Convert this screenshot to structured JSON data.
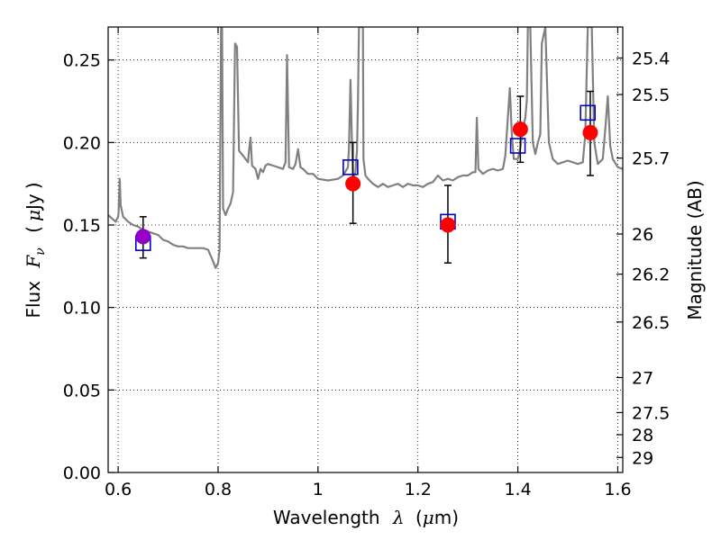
{
  "chart_data": {
    "type": "scatter",
    "title": "",
    "xlabel": {
      "prefix": "Wavelength",
      "symbol": "λ",
      "unit_open": "(",
      "unit_mu": "μ",
      "unit_rest": "m)"
    },
    "ylabel": {
      "prefix": "Flux",
      "symbol": "F",
      "sub": "ν",
      "unit_open": "(",
      "unit_mu": "μ",
      "unit_rest": "Jy",
      "unit_close": ")"
    },
    "ylabel_right": "Magnitude (AB)",
    "xlim": [
      0.58,
      1.61
    ],
    "ylim": [
      0.0,
      0.27
    ],
    "grid": true,
    "legend": "none",
    "x_ticks": [
      {
        "value": 0.6,
        "label": "0.6"
      },
      {
        "value": 0.8,
        "label": "0.8"
      },
      {
        "value": 1.0,
        "label": "1"
      },
      {
        "value": 1.2,
        "label": "1.2"
      },
      {
        "value": 1.4,
        "label": "1.4"
      },
      {
        "value": 1.6,
        "label": "1.6"
      }
    ],
    "y_ticks": [
      {
        "value": 0.0,
        "label": "0.00"
      },
      {
        "value": 0.05,
        "label": "0.05"
      },
      {
        "value": 0.1,
        "label": "0.10"
      },
      {
        "value": 0.15,
        "label": "0.15"
      },
      {
        "value": 0.2,
        "label": "0.20"
      },
      {
        "value": 0.25,
        "label": "0.25"
      }
    ],
    "mag_ticks": [
      {
        "mag": 25.4,
        "label": "25.4"
      },
      {
        "mag": 25.5,
        "label": "25.5"
      },
      {
        "mag": 25.7,
        "label": "25.7"
      },
      {
        "mag": 26.0,
        "label": "26"
      },
      {
        "mag": 26.2,
        "label": "26.2"
      },
      {
        "mag": 26.5,
        "label": "26.5"
      },
      {
        "mag": 27.0,
        "label": "27"
      },
      {
        "mag": 27.5,
        "label": "27.5"
      },
      {
        "mag": 28.0,
        "label": "28"
      },
      {
        "mag": 29.0,
        "label": "29"
      }
    ],
    "series": [
      {
        "kind": "line",
        "color": "#808080",
        "points": [
          [
            0.58,
            0.156
          ],
          [
            0.595,
            0.152
          ],
          [
            0.6,
            0.155
          ],
          [
            0.601,
            0.158
          ],
          [
            0.603,
            0.178
          ],
          [
            0.605,
            0.162
          ],
          [
            0.61,
            0.155
          ],
          [
            0.62,
            0.152
          ],
          [
            0.63,
            0.15
          ],
          [
            0.64,
            0.149
          ],
          [
            0.65,
            0.147
          ],
          [
            0.66,
            0.146
          ],
          [
            0.67,
            0.145
          ],
          [
            0.68,
            0.144
          ],
          [
            0.69,
            0.141
          ],
          [
            0.7,
            0.14
          ],
          [
            0.71,
            0.138
          ],
          [
            0.72,
            0.137
          ],
          [
            0.73,
            0.137
          ],
          [
            0.74,
            0.136
          ],
          [
            0.75,
            0.136
          ],
          [
            0.76,
            0.136
          ],
          [
            0.77,
            0.136
          ],
          [
            0.78,
            0.135
          ],
          [
            0.79,
            0.128
          ],
          [
            0.795,
            0.124
          ],
          [
            0.8,
            0.127
          ],
          [
            0.803,
            0.135
          ],
          [
            0.806,
            0.27
          ],
          [
            0.808,
            0.27
          ],
          [
            0.81,
            0.16
          ],
          [
            0.815,
            0.156
          ],
          [
            0.82,
            0.16
          ],
          [
            0.825,
            0.163
          ],
          [
            0.83,
            0.17
          ],
          [
            0.834,
            0.26
          ],
          [
            0.838,
            0.258
          ],
          [
            0.842,
            0.195
          ],
          [
            0.85,
            0.192
          ],
          [
            0.855,
            0.19
          ],
          [
            0.86,
            0.188
          ],
          [
            0.862,
            0.195
          ],
          [
            0.865,
            0.203
          ],
          [
            0.868,
            0.186
          ],
          [
            0.875,
            0.184
          ],
          [
            0.88,
            0.178
          ],
          [
            0.885,
            0.184
          ],
          [
            0.89,
            0.182
          ],
          [
            0.895,
            0.186
          ],
          [
            0.9,
            0.187
          ],
          [
            0.91,
            0.186
          ],
          [
            0.92,
            0.185
          ],
          [
            0.93,
            0.184
          ],
          [
            0.935,
            0.188
          ],
          [
            0.938,
            0.253
          ],
          [
            0.942,
            0.185
          ],
          [
            0.95,
            0.184
          ],
          [
            0.955,
            0.187
          ],
          [
            0.96,
            0.196
          ],
          [
            0.965,
            0.185
          ],
          [
            0.97,
            0.184
          ],
          [
            0.98,
            0.181
          ],
          [
            0.99,
            0.181
          ],
          [
            1.0,
            0.178
          ],
          [
            1.02,
            0.177
          ],
          [
            1.04,
            0.178
          ],
          [
            1.05,
            0.18
          ],
          [
            1.06,
            0.185
          ],
          [
            1.062,
            0.197
          ],
          [
            1.065,
            0.238
          ],
          [
            1.068,
            0.2
          ],
          [
            1.07,
            0.178
          ],
          [
            1.075,
            0.182
          ],
          [
            1.078,
            0.195
          ],
          [
            1.08,
            0.225
          ],
          [
            1.082,
            0.27
          ],
          [
            1.09,
            0.27
          ],
          [
            1.091,
            0.19
          ],
          [
            1.095,
            0.18
          ],
          [
            1.1,
            0.178
          ],
          [
            1.11,
            0.175
          ],
          [
            1.12,
            0.173
          ],
          [
            1.13,
            0.175
          ],
          [
            1.14,
            0.173
          ],
          [
            1.15,
            0.174
          ],
          [
            1.16,
            0.175
          ],
          [
            1.17,
            0.173
          ],
          [
            1.18,
            0.175
          ],
          [
            1.19,
            0.174
          ],
          [
            1.2,
            0.174
          ],
          [
            1.21,
            0.173
          ],
          [
            1.22,
            0.175
          ],
          [
            1.23,
            0.176
          ],
          [
            1.24,
            0.18
          ],
          [
            1.25,
            0.177
          ],
          [
            1.26,
            0.178
          ],
          [
            1.27,
            0.177
          ],
          [
            1.28,
            0.179
          ],
          [
            1.29,
            0.18
          ],
          [
            1.3,
            0.18
          ],
          [
            1.31,
            0.182
          ],
          [
            1.315,
            0.182
          ],
          [
            1.318,
            0.215
          ],
          [
            1.321,
            0.184
          ],
          [
            1.33,
            0.181
          ],
          [
            1.34,
            0.183
          ],
          [
            1.35,
            0.184
          ],
          [
            1.36,
            0.183
          ],
          [
            1.37,
            0.184
          ],
          [
            1.375,
            0.192
          ],
          [
            1.38,
            0.215
          ],
          [
            1.384,
            0.233
          ],
          [
            1.388,
            0.205
          ],
          [
            1.392,
            0.19
          ],
          [
            1.4,
            0.19
          ],
          [
            1.405,
            0.197
          ],
          [
            1.41,
            0.208
          ],
          [
            1.415,
            0.215
          ],
          [
            1.418,
            0.226
          ],
          [
            1.42,
            0.27
          ],
          [
            1.425,
            0.27
          ],
          [
            1.43,
            0.2
          ],
          [
            1.435,
            0.193
          ],
          [
            1.44,
            0.2
          ],
          [
            1.445,
            0.205
          ],
          [
            1.448,
            0.26
          ],
          [
            1.455,
            0.27
          ],
          [
            1.462,
            0.2
          ],
          [
            1.47,
            0.19
          ],
          [
            1.48,
            0.187
          ],
          [
            1.49,
            0.188
          ],
          [
            1.5,
            0.189
          ],
          [
            1.51,
            0.188
          ],
          [
            1.52,
            0.187
          ],
          [
            1.53,
            0.188
          ],
          [
            1.535,
            0.205
          ],
          [
            1.54,
            0.27
          ],
          [
            1.548,
            0.27
          ],
          [
            1.553,
            0.2
          ],
          [
            1.56,
            0.187
          ],
          [
            1.57,
            0.19
          ],
          [
            1.575,
            0.208
          ],
          [
            1.58,
            0.228
          ],
          [
            1.585,
            0.198
          ],
          [
            1.59,
            0.19
          ],
          [
            1.6,
            0.185
          ],
          [
            1.61,
            0.184
          ]
        ]
      },
      {
        "kind": "open-square",
        "color": "#0000cc",
        "points": [
          [
            0.65,
            0.139
          ],
          [
            1.065,
            0.185
          ],
          [
            1.26,
            0.152
          ],
          [
            1.4,
            0.198
          ],
          [
            1.54,
            0.218
          ]
        ]
      },
      {
        "kind": "filled-circle",
        "color": "#ff0000",
        "errors": true,
        "points": [
          {
            "x": 0.65,
            "y": 0.143,
            "lo": 0.13,
            "hi": 0.155,
            "color": "#9400c8"
          },
          {
            "x": 1.07,
            "y": 0.175,
            "lo": 0.151,
            "hi": 0.2
          },
          {
            "x": 1.26,
            "y": 0.15,
            "lo": 0.127,
            "hi": 0.174
          },
          {
            "x": 1.405,
            "y": 0.208,
            "lo": 0.188,
            "hi": 0.228
          },
          {
            "x": 1.545,
            "y": 0.206,
            "lo": 0.18,
            "hi": 0.231
          }
        ]
      }
    ]
  }
}
